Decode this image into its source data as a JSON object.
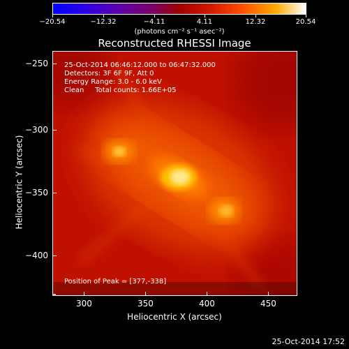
{
  "colorbar": {
    "ticks": [
      "−20.54",
      "−12.32",
      "−4.11",
      "4.11",
      "12.32",
      "20.54"
    ],
    "units": "(photons cm⁻² s⁻¹ asec⁻²)"
  },
  "title": "Reconstructed RHESSI Image",
  "info": {
    "time": "25-Oct-2014 06:46:12.000 to 06:47:32.000",
    "detectors": "Detectors: 3F 6F 9F, Att 0",
    "energy": "Energy Range: 3.0 - 6.0 keV",
    "method": "Clean     Total counts: 1.66E+05",
    "peak": "Position of Peak = [377,-338]"
  },
  "axes": {
    "y_title": "Heliocentric Y (arcsec)",
    "x_title": "Heliocentric X (arcsec)",
    "y_ticks": [
      "−250",
      "−300",
      "−350",
      "−400"
    ],
    "x_ticks": [
      "300",
      "350",
      "400",
      "450"
    ]
  },
  "footer": {
    "timestamp": "25-Oct-2014 17:52"
  }
}
